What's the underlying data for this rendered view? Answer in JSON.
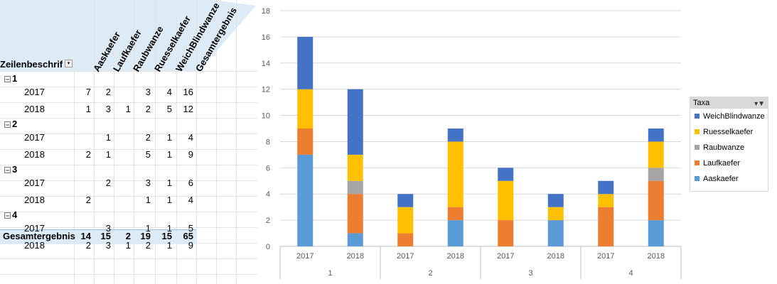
{
  "pivot": {
    "row_label_header": "Zeilenbeschrif",
    "columns": [
      "Aaskaefer",
      "Laufkaefer",
      "Raubwanze",
      "Ruesselkaefer",
      "WeichBlindwanze",
      "Gesamtergebnis"
    ],
    "groups": [
      {
        "label": "1",
        "rows": [
          {
            "year": "2017",
            "vals": [
              "7",
              "2",
              "",
              "3",
              "4",
              "16"
            ]
          },
          {
            "year": "2018",
            "vals": [
              "1",
              "3",
              "1",
              "2",
              "5",
              "12"
            ]
          }
        ]
      },
      {
        "label": "2",
        "rows": [
          {
            "year": "2017",
            "vals": [
              "",
              "1",
              "",
              "2",
              "1",
              "4"
            ]
          },
          {
            "year": "2018",
            "vals": [
              "2",
              "1",
              "",
              "5",
              "1",
              "9"
            ]
          }
        ]
      },
      {
        "label": "3",
        "rows": [
          {
            "year": "2017",
            "vals": [
              "",
              "2",
              "",
              "3",
              "1",
              "6"
            ]
          },
          {
            "year": "2018",
            "vals": [
              "2",
              "",
              "",
              "1",
              "1",
              "4"
            ]
          }
        ]
      },
      {
        "label": "4",
        "rows": [
          {
            "year": "2017",
            "vals": [
              "",
              "3",
              "",
              "1",
              "1",
              "5"
            ]
          },
          {
            "year": "2018",
            "vals": [
              "2",
              "3",
              "1",
              "2",
              "1",
              "9"
            ]
          }
        ]
      }
    ],
    "total_label": "Gesamtergebnis",
    "totals": [
      "14",
      "15",
      "2",
      "19",
      "15",
      "65"
    ],
    "collapse_symbol": "−"
  },
  "chart_data": {
    "type": "bar",
    "stacked": true,
    "groups": [
      "1",
      "2",
      "3",
      "4"
    ],
    "categories": [
      "2017",
      "2018",
      "2017",
      "2018",
      "2017",
      "2018",
      "2017",
      "2018"
    ],
    "ylim": [
      0,
      18
    ],
    "yticks": [
      "0",
      "2",
      "4",
      "6",
      "8",
      "10",
      "12",
      "14",
      "16",
      "18"
    ],
    "grid": true,
    "legend_position": "right",
    "legend_title": "Taxa",
    "series": [
      {
        "name": "Aaskaefer",
        "color": "#5b9bd5",
        "values": [
          7,
          1,
          0,
          2,
          0,
          2,
          0,
          2
        ]
      },
      {
        "name": "Laufkaefer",
        "color": "#ed7d31",
        "values": [
          2,
          3,
          1,
          1,
          2,
          0,
          3,
          3
        ]
      },
      {
        "name": "Raubwanze",
        "color": "#a5a5a5",
        "values": [
          0,
          1,
          0,
          0,
          0,
          0,
          0,
          1
        ]
      },
      {
        "name": "Ruesselkaefer",
        "color": "#ffc000",
        "values": [
          3,
          2,
          2,
          5,
          3,
          1,
          1,
          2
        ]
      },
      {
        "name": "WeichBlindwanze",
        "color": "#4472c4",
        "values": [
          4,
          5,
          1,
          1,
          1,
          1,
          1,
          1
        ]
      }
    ]
  },
  "legend": {
    "title": "Taxa",
    "items": [
      "WeichBlindwanze",
      "Ruesselkaefer",
      "Raubwanze",
      "Laufkaefer",
      "Aaskaefer"
    ],
    "colors": [
      "#4472c4",
      "#ffc000",
      "#a5a5a5",
      "#ed7d31",
      "#5b9bd5"
    ]
  }
}
